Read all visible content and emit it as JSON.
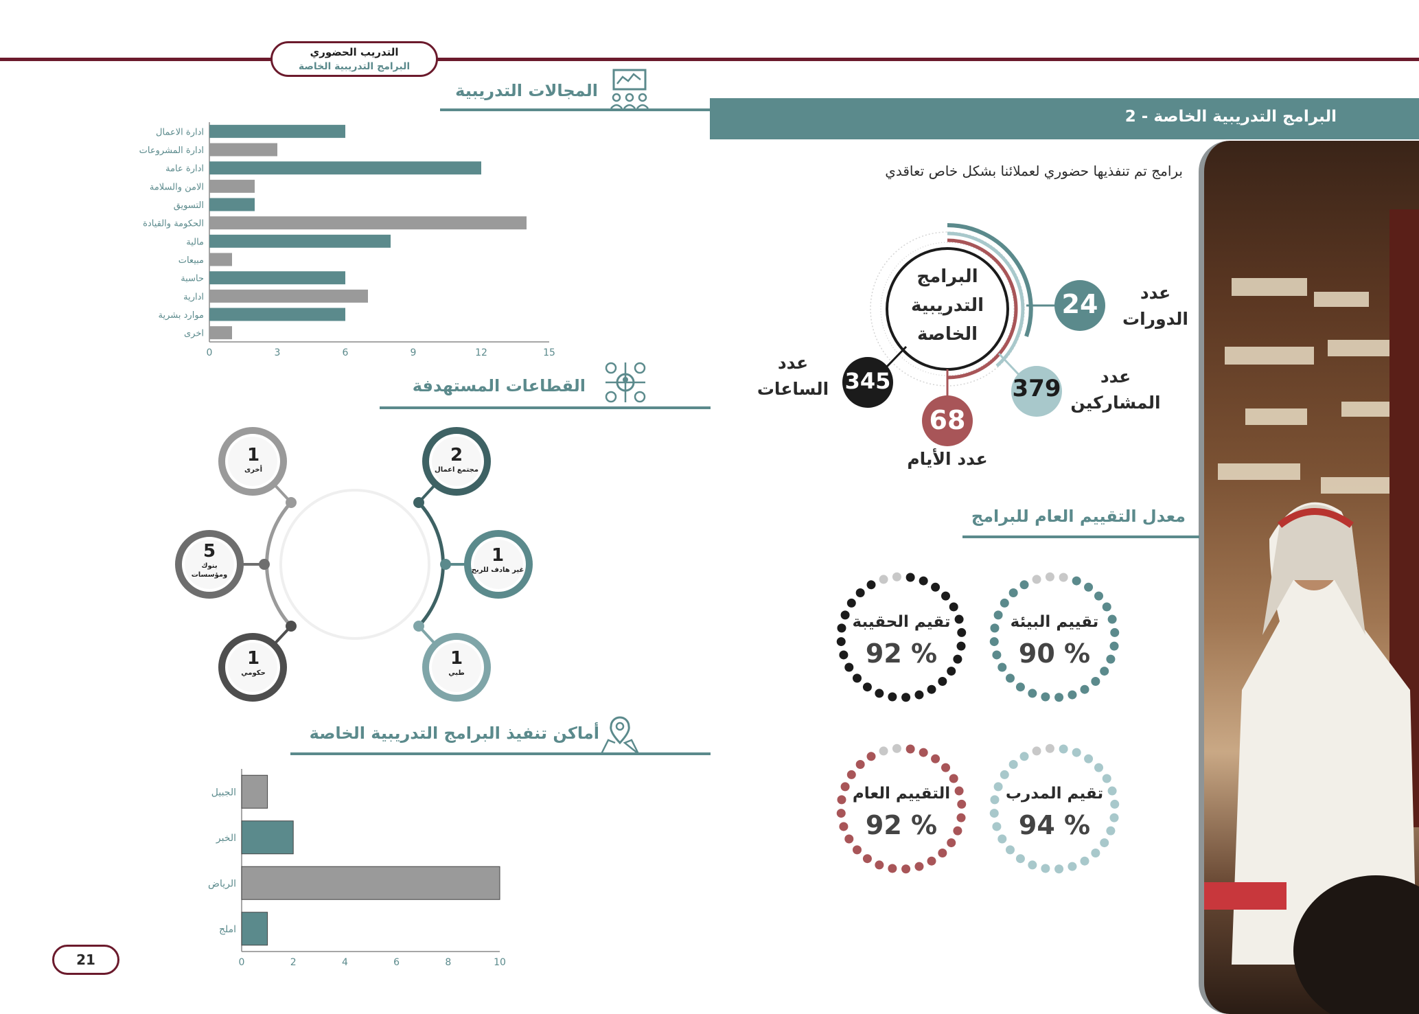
{
  "header": {
    "line1": "التدريب الحضوري",
    "line2": "البرامج التدريبية الخاصة"
  },
  "banner": {
    "title": "2 - البرامج التدريبية الخاصة"
  },
  "intro": {
    "text": "برامج تم تنفذيها حضوري لعملائنا بشكل خاص تعاقدي"
  },
  "summary": {
    "center_lines": [
      "البرامج",
      "التدريبية",
      "الخاصة"
    ],
    "courses": {
      "label_lines": [
        "عدد",
        "الدورات"
      ],
      "value": "24"
    },
    "participants": {
      "label_lines": [
        "عدد",
        "المشاركين"
      ],
      "value": "379"
    },
    "days": {
      "label": "عدد الأيام",
      "value": "68"
    },
    "hours": {
      "label_lines": [
        "عدد",
        "الساعات"
      ],
      "value": "345"
    }
  },
  "rating": {
    "title": "معدل التقييم العام للبرامج",
    "items": [
      {
        "title": "تقيم الحقيبة",
        "value": "92 %",
        "color": "#1b1b1b"
      },
      {
        "title": "تقييم البيئة",
        "value": "90 %",
        "color": "#5b8a8c"
      },
      {
        "title": "التقييم العام",
        "value": "92 %",
        "color": "#a85558"
      },
      {
        "title": "تقيم المدرب",
        "value": "94 %",
        "color": "#a8c8cb"
      }
    ]
  },
  "fields": {
    "title": "المجالات التدريبية"
  },
  "sectors": {
    "title": "القطاعات المستهدفة",
    "items": [
      {
        "value": "1",
        "label": [
          "أخرى"
        ],
        "color": "#9a9a9a"
      },
      {
        "value": "5",
        "label": [
          "بنوك",
          "ومؤسسات"
        ],
        "color": "#6e6e6e"
      },
      {
        "value": "1",
        "label": [
          "حكومي"
        ],
        "color": "#4e4e4e"
      },
      {
        "value": "2",
        "label": [
          "مجتمع اعمال"
        ],
        "color": "#3e6264"
      },
      {
        "value": "1",
        "label": [
          "غير هادف للربح"
        ],
        "color": "#5b8a8c"
      },
      {
        "value": "1",
        "label": [
          "طبي"
        ],
        "color": "#7fa5a8"
      }
    ]
  },
  "locations": {
    "title": "أماكن تنفيذ البرامج التدريبية الخاصة"
  },
  "page": {
    "number": "21"
  },
  "colors": {
    "accent": "#5b8a8c",
    "maroon": "#6b1a2c",
    "gray": "#9a9a9a",
    "red": "#a85558",
    "light": "#a8c8cb"
  },
  "chart_data": [
    {
      "type": "bar",
      "orientation": "horizontal",
      "categories": [
        "ادارة الاعمال",
        "ادارة المشروعات",
        "ادارة عامة",
        "الامن والسلامة",
        "التسويق",
        "الحكومة والقيادة",
        "مالية",
        "مبيعات",
        "حاسبة",
        "ادارية",
        "موارد بشرية",
        "اخرى"
      ],
      "values": [
        6,
        3,
        12,
        2,
        2,
        14,
        8,
        1,
        6,
        7,
        6,
        1
      ],
      "xlim": [
        0,
        15
      ],
      "xticks": [
        0,
        3,
        6,
        9,
        12,
        15
      ],
      "bar_colors": [
        "#5b8a8c",
        "#9a9a9a"
      ]
    },
    {
      "type": "bar",
      "orientation": "horizontal",
      "categories": [
        "الجبيل",
        "الخبر",
        "الرياض",
        "املج"
      ],
      "values": [
        1,
        2,
        10,
        1
      ],
      "xlim": [
        0,
        10
      ],
      "xticks": [
        0,
        2,
        4,
        6,
        8,
        10
      ],
      "bar_colors": [
        "#9a9a9a",
        "#5b8a8c"
      ]
    }
  ]
}
